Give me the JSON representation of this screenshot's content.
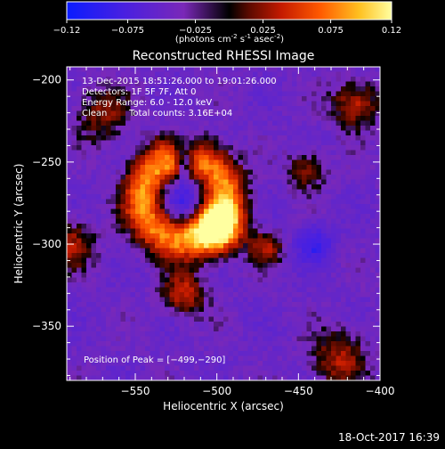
{
  "chart_data": {
    "type": "heatmap",
    "title": "Reconstructed RHESSI Image",
    "colorbar": {
      "ticks": [
        "-0.12",
        "-0.075",
        "-0.025",
        "0.025",
        "0.075",
        "0.12"
      ],
      "tick_values": [
        -0.12,
        -0.075,
        -0.025,
        0.025,
        0.075,
        0.12
      ],
      "range": [
        -0.12,
        0.12
      ],
      "unit_prefix": "(photons cm",
      "unit_sup1": "-2",
      "unit_mid1": " s",
      "unit_sup2": "-1",
      "unit_mid2": " asec",
      "unit_sup3": "-2",
      "unit_suffix": ")"
    },
    "xlabel": "Heliocentric X (arcsec)",
    "ylabel": "Heliocentric Y (arcsec)",
    "xlim": [
      -592,
      -400
    ],
    "ylim": [
      -383,
      -192
    ],
    "x_ticks": [
      -550,
      -500,
      -450,
      -400
    ],
    "y_ticks": [
      -200,
      -250,
      -300,
      -350
    ],
    "x_tick_labels": [
      "−550",
      "−500",
      "−450",
      "−400"
    ],
    "y_tick_labels": [
      "−200",
      "−250",
      "−300",
      "−350"
    ],
    "info": {
      "time_range": "13-Dec-2015 18:51:26.000 to 19:01:26.000",
      "detectors": "Detectors: 1F 5F 7F, Att 0",
      "energy": "Energy Range: 6.0 - 12.0 keV",
      "algorithm": "Clean",
      "counts": "Total counts: 3.16E+04"
    },
    "peak": {
      "label": "Position of Peak = [−499,−290]",
      "x": -499,
      "y": -290
    },
    "sources": [
      {
        "kind": "ring",
        "x": -520,
        "y": -272,
        "amplitude": 0.11,
        "r_inner": 12,
        "r_outer": 38
      },
      {
        "kind": "blob",
        "x": -499,
        "y": -290,
        "amplitude": 0.12,
        "sigma": 10
      },
      {
        "kind": "blob",
        "x": -520,
        "y": -330,
        "amplitude": 0.07,
        "sigma": 9
      },
      {
        "kind": "blob",
        "x": -470,
        "y": -302,
        "amplitude": 0.06,
        "sigma": 7
      },
      {
        "kind": "blob",
        "x": -445,
        "y": -255,
        "amplitude": 0.055,
        "sigma": 8
      },
      {
        "kind": "blob",
        "x": -415,
        "y": -215,
        "amplitude": 0.07,
        "sigma": 10
      },
      {
        "kind": "blob",
        "x": -425,
        "y": -370,
        "amplitude": 0.06,
        "sigma": 12
      },
      {
        "kind": "blob",
        "x": -570,
        "y": -220,
        "amplitude": 0.05,
        "sigma": 12
      },
      {
        "kind": "blob",
        "x": -440,
        "y": -300,
        "amplitude": -0.06,
        "sigma": 8
      },
      {
        "kind": "blob",
        "x": -590,
        "y": -300,
        "amplitude": 0.06,
        "sigma": 10
      }
    ]
  },
  "footer": {
    "timestamp": "18-Oct-2017 16:39"
  }
}
